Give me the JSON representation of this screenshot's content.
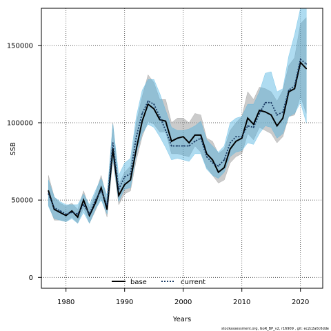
{
  "chart_data": {
    "type": "line",
    "title": "",
    "xlabel": "Years",
    "ylabel": "SSB",
    "xlim": [
      1975.8,
      2023.8
    ],
    "ylim": [
      -7000,
      174000
    ],
    "x_ticks": [
      1980,
      1990,
      2000,
      2010,
      2020
    ],
    "y_ticks": [
      0,
      50000,
      100000,
      150000
    ],
    "grid": true,
    "legend_position": "bottom-center",
    "footnote": "stockassessment.org, GoR_BP_v2, r16909 , git: ec2c2a0c6dde",
    "x": [
      1977,
      1978,
      1979,
      1980,
      1981,
      1982,
      1983,
      1984,
      1985,
      1986,
      1987,
      1988,
      1989,
      1990,
      1991,
      1992,
      1993,
      1994,
      1995,
      1996,
      1997,
      1998,
      1999,
      2000,
      2001,
      2002,
      2003,
      2004,
      2005,
      2006,
      2007,
      2008,
      2009,
      2010,
      2011,
      2012,
      2013,
      2014,
      2015,
      2016,
      2017,
      2018,
      2019,
      2020,
      2021
    ],
    "series": [
      {
        "name": "base",
        "color": "#000000",
        "band_color": "#8c8c8c",
        "values": [
          56000,
          44000,
          42000,
          40000,
          43000,
          39000,
          50000,
          40000,
          48000,
          58000,
          44000,
          83000,
          53000,
          60000,
          63000,
          83000,
          101000,
          112000,
          109000,
          102000,
          101000,
          88000,
          90000,
          91000,
          87000,
          92000,
          92000,
          80000,
          76000,
          68000,
          71000,
          83000,
          88000,
          90000,
          103000,
          99000,
          108000,
          107000,
          105000,
          98000,
          103000,
          120000,
          122000,
          139000,
          135000
        ],
        "lower": [
          47000,
          37000,
          37000,
          36000,
          39000,
          35000,
          45000,
          35000,
          43000,
          52000,
          39000,
          76000,
          47000,
          54000,
          56000,
          76000,
          91000,
          101000,
          99000,
          94000,
          94000,
          80000,
          80000,
          79000,
          78000,
          85000,
          81000,
          71000,
          66000,
          61000,
          63000,
          74000,
          78000,
          80000,
          93000,
          89000,
          97000,
          95000,
          93000,
          87000,
          91000,
          104000,
          105000,
          117000,
          106000
        ],
        "upper": [
          66000,
          52000,
          48000,
          46000,
          48000,
          44000,
          56000,
          45000,
          54000,
          66000,
          50000,
          100000,
          60000,
          68000,
          72000,
          100000,
          117000,
          131000,
          126000,
          115000,
          115000,
          100000,
          103000,
          103000,
          100000,
          106000,
          105000,
          90000,
          88000,
          80000,
          83000,
          95000,
          100000,
          104000,
          120000,
          115000,
          123000,
          122000,
          120000,
          114000,
          121000,
          137000,
          142000,
          164000,
          168000
        ]
      },
      {
        "name": "current",
        "color": "#1a3a63",
        "band_color": "#4db2e0",
        "values": [
          54000,
          45000,
          43000,
          41000,
          42000,
          41000,
          47000,
          41000,
          50000,
          56000,
          47000,
          87000,
          57000,
          65000,
          67000,
          91000,
          106000,
          114000,
          112000,
          104000,
          95000,
          85000,
          85000,
          85000,
          85000,
          88000,
          90000,
          78000,
          74000,
          72000,
          76000,
          87000,
          91000,
          91000,
          98000,
          97000,
          106000,
          113000,
          113000,
          105000,
          107000,
          121000,
          124000,
          141000,
          138000
        ],
        "lower": [
          46000,
          38000,
          37000,
          36000,
          38000,
          35000,
          42000,
          35000,
          44000,
          50000,
          41000,
          77000,
          49000,
          57000,
          58000,
          80000,
          93000,
          99000,
          97000,
          91000,
          84000,
          76000,
          77000,
          76000,
          75000,
          80000,
          80000,
          70000,
          66000,
          64000,
          68000,
          78000,
          81000,
          82000,
          87000,
          86000,
          93000,
          98000,
          97000,
          90000,
          93000,
          104000,
          106000,
          113000,
          100000
        ],
        "upper": [
          63000,
          52000,
          49000,
          47000,
          47000,
          47000,
          54000,
          47000,
          56000,
          64000,
          53000,
          99000,
          66000,
          74000,
          77000,
          104000,
          121000,
          128000,
          128000,
          119000,
          108000,
          97000,
          95000,
          95000,
          96000,
          98000,
          101000,
          89000,
          85000,
          81000,
          85000,
          100000,
          103000,
          104000,
          112000,
          112000,
          120000,
          132000,
          133000,
          120000,
          122000,
          143000,
          157000,
          190000,
          190000
        ]
      }
    ]
  }
}
